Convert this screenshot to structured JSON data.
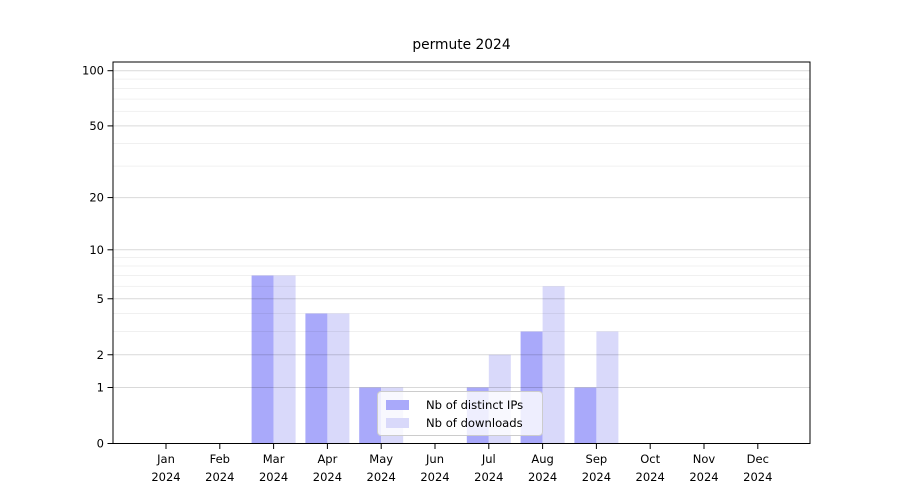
{
  "chart_data": {
    "type": "bar",
    "title": "permute 2024",
    "categories": [
      "Jan",
      "Feb",
      "Mar",
      "Apr",
      "May",
      "Jun",
      "Jul",
      "Aug",
      "Sep",
      "Oct",
      "Nov",
      "Dec"
    ],
    "x_year_label": "2024",
    "series": [
      {
        "name": "Nb of distinct IPs",
        "color": "#a9a9fa",
        "values": [
          0,
          0,
          7,
          4,
          1,
          0,
          1,
          3,
          1,
          0,
          0,
          0
        ]
      },
      {
        "name": "Nb of downloads",
        "color": "#d9d9fa",
        "values": [
          0,
          0,
          7,
          4,
          1,
          0,
          2,
          6,
          3,
          0,
          0,
          0
        ]
      }
    ],
    "xlabel": "",
    "ylabel": "",
    "y_axis": {
      "scale": "log1p",
      "tick_labels": [
        0,
        1,
        2,
        5,
        10,
        20,
        50,
        100
      ],
      "minor_ticks": [
        3,
        4,
        6,
        7,
        8,
        9,
        30,
        40,
        60,
        70,
        80,
        90
      ],
      "ylim": [
        0,
        112
      ]
    },
    "grid": {
      "shown": true,
      "major_color": "rgba(0,0,0,0.15)",
      "minor_color": "rgba(0,0,0,0.06)"
    },
    "legend": {
      "position": "lower-center"
    },
    "colors": {
      "background": "#ffffff",
      "axis_frame": "#000000",
      "tick_text": "#000000"
    }
  }
}
